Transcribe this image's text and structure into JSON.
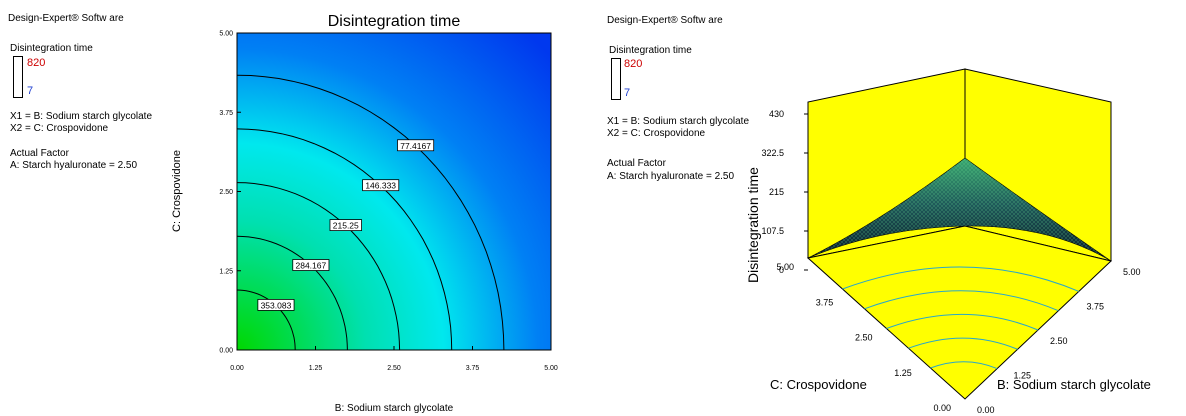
{
  "left_panel": {
    "software": "Design-Expert® Softw are",
    "response_label": "Disintegration time",
    "legend_max": "820",
    "legend_min": "7",
    "legend_max_color": "#cc0000",
    "legend_min_color": "#1f3fd0",
    "x1_def": "X1 = B: Sodium starch glycolate",
    "x2_def": "X2 = C: Crospovidone",
    "actual_factor_heading": "Actual Factor",
    "actual_factor_value": "A: Starch hyaluronate = 2.50"
  },
  "right_panel": {
    "software": "Design-Expert® Softw are",
    "response_label": "Disintegration time",
    "legend_max": "820",
    "legend_min": "7",
    "x1_def": "X1 = B: Sodium starch glycolate",
    "x2_def": "X2 = C: Crospovidone",
    "actual_factor_heading": "Actual Factor",
    "actual_factor_value": "A: Starch hyaluronate = 2.50"
  },
  "chart_data": [
    {
      "type": "heatmap",
      "subtype": "contour",
      "title": "Disintegration time",
      "xlabel": "B: Sodium starch glycolate",
      "ylabel": "C: Crospovidone",
      "xlim": [
        0,
        5
      ],
      "ylim": [
        0,
        5
      ],
      "xticks": [
        "0.00",
        "1.25",
        "2.50",
        "3.75",
        "5.00"
      ],
      "yticks": [
        "0.00",
        "1.25",
        "2.50",
        "3.75",
        "5.00"
      ],
      "contour_labels": [
        "77.4167",
        "146.333",
        "215.25",
        "284.167",
        "353.083"
      ],
      "contour_levels": [
        77.4167,
        146.333,
        215.25,
        284.167,
        353.083
      ],
      "model_peak": 430,
      "colormap": [
        "#00d800",
        "#00e8e8",
        "#0050f0"
      ]
    },
    {
      "type": "surface",
      "zlabel": "Disintegration time",
      "xlabel": "B: Sodium starch glycolate",
      "ylabel": "C: Crospovidone",
      "zlim": [
        0,
        430
      ],
      "zticks": [
        "0",
        "107.5",
        "215",
        "322.5",
        "430"
      ],
      "xticks": [
        "0.00",
        "1.25",
        "2.50",
        "3.75",
        "5.00"
      ],
      "yticks": [
        "0.00",
        "1.25",
        "2.50",
        "3.75",
        "5.00"
      ],
      "background_color": "#ffff00"
    }
  ]
}
